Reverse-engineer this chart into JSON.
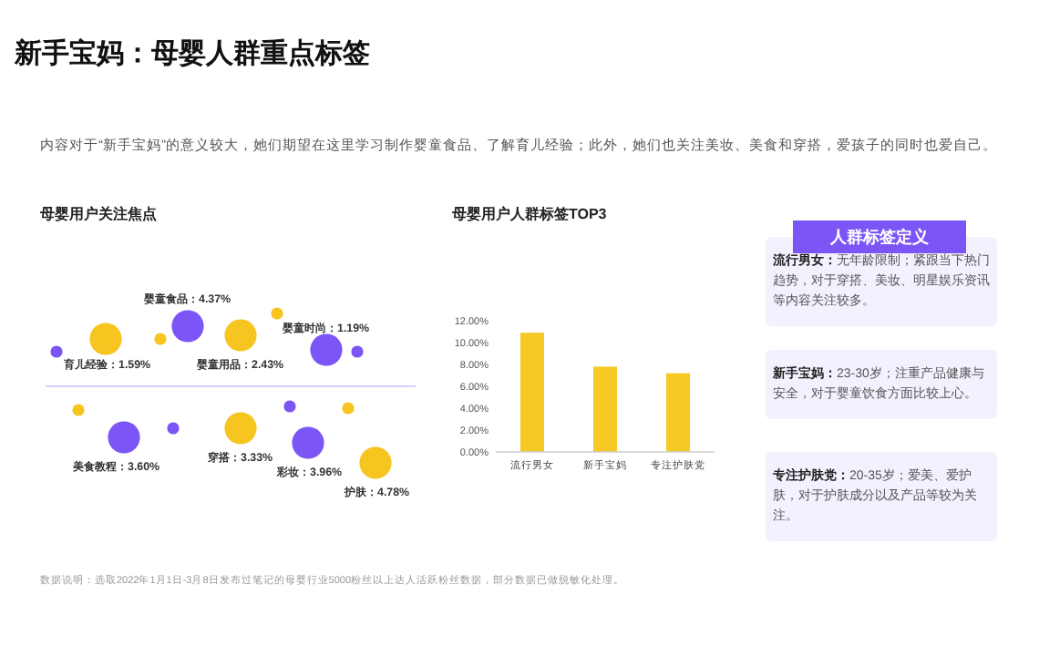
{
  "chart_data": [
    {
      "type": "other",
      "title": "新手宝妈：母婴人群重点标签",
      "subtitle": "内容对于“新手宝妈”的意义较大，她们期望在这里学习制作婴童食品、了解育儿经验；此外，她们也关注美妆、美食和穿搭，爱孩子的同时也爱自己。",
      "annotations": [
        "数据说明：选取2022年1月1日-3月8日发布过笔记的母婴行业5000粉丝以上达人活跃粉丝数据，部分数据已做脱敏化处理。"
      ]
    },
    {
      "type": "other",
      "title": "母婴用户关注焦点",
      "categories": [
        "育儿经验：1.59%",
        "婴童食品：4.37%",
        "婴童用品：2.43%",
        "婴童时尚：1.19%",
        "美食教程：3.60%",
        "穿搭：3.33%",
        "彩妆：3.96%",
        "护肤：4.78%"
      ],
      "colors": [
        "#f7c520",
        "#7b55f5",
        "#f7c520",
        "#7b55f5",
        "#7b55f5",
        "#f7c520",
        "#7b55f5",
        "#f7c520"
      ]
    },
    {
      "type": "bar",
      "title": "母婴用户人群标签TOP3",
      "categories": [
        "流行男女",
        "新手宝妈",
        "专注护肤党"
      ],
      "values": [
        10.9,
        7.8,
        7.2
      ],
      "color": "#f7c925",
      "ylim": [
        0,
        12
      ],
      "yticks": [
        {
          "value": 0,
          "label": "0.00%"
        },
        {
          "value": 2,
          "label": "2.00%"
        },
        {
          "value": 4,
          "label": "4.00%"
        },
        {
          "value": 6,
          "label": "6.00%"
        },
        {
          "value": 8,
          "label": "8.00%"
        },
        {
          "value": 10,
          "label": "10.00%"
        },
        {
          "value": 12,
          "label": "12.00%"
        }
      ]
    },
    {
      "type": "other",
      "title": "人群标签定义",
      "annotations": [
        "流行男女：无年龄限制；紧跟当下热门趋势，对于穿搭、美妆、明星娱乐资讯等内容关注较多。",
        "新手宝妈：23-30岁；注重产品健康与安全，对于婴童饮食方面比较上心。",
        "专注护肤党：20-35岁；爱美、爱护肤，对于护肤成分以及产品等较为关注。"
      ]
    }
  ]
}
